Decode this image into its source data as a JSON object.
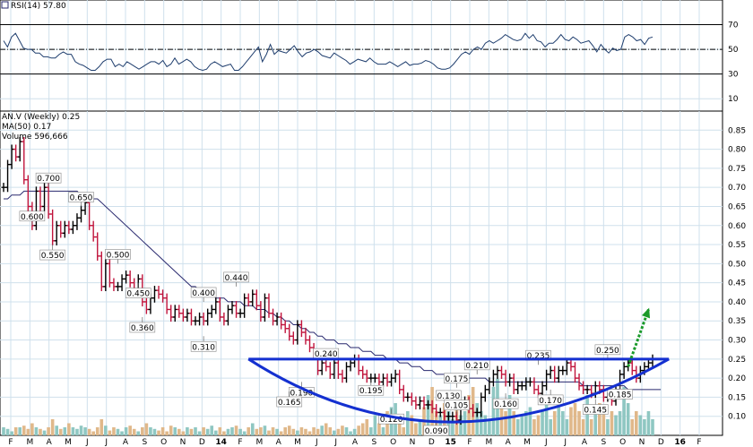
{
  "colors": {
    "panel_border": "#000000",
    "grid": "#cfe0ec",
    "up_bar": "#000000",
    "down_bar": "#c0143c",
    "ma_line": "#28286e",
    "rsi_line": "#1f3e6e",
    "rsi_oversold_fill": "#f0a040",
    "vol_up": "#8fc7c2",
    "vol_down": "#e0b88a",
    "cup_line": "#1430d0",
    "arrow": "#1a9a2a"
  },
  "chart_data": [
    {
      "type": "line",
      "panel": "rsi",
      "legend": "RSI(14) 57.80",
      "ylim": [
        0,
        90
      ],
      "y_ticks": [
        10,
        30,
        50,
        70
      ],
      "reference_lines": [
        30,
        50,
        70
      ],
      "grid": true,
      "values": [
        57,
        52,
        60,
        63,
        57,
        51,
        50,
        50,
        47,
        47,
        44,
        44,
        43,
        43,
        46,
        48,
        46,
        46,
        40,
        38,
        37,
        35,
        33,
        33,
        36,
        40,
        42,
        42,
        36,
        38,
        36,
        40,
        38,
        36,
        34,
        36,
        38,
        40,
        40,
        38,
        41,
        36,
        38,
        43,
        38,
        40,
        42,
        40,
        36,
        34,
        33,
        34,
        38,
        40,
        38,
        36,
        37,
        38,
        33,
        33,
        36,
        40,
        44,
        48,
        52,
        40,
        46,
        54,
        46,
        49,
        48,
        47,
        50,
        53,
        48,
        44,
        47,
        48,
        50,
        48,
        45,
        44,
        43,
        47,
        45,
        43,
        41,
        38,
        40,
        42,
        41,
        40,
        43,
        40,
        38,
        38,
        38,
        40,
        38,
        36,
        38,
        40,
        37,
        38,
        38,
        39,
        41,
        40,
        38,
        35,
        34,
        34,
        35,
        38,
        42,
        46,
        48,
        46,
        50,
        52,
        50,
        55,
        57,
        55,
        57,
        59,
        62,
        60,
        58,
        57,
        58,
        63,
        59,
        62,
        57,
        56,
        52,
        55,
        55,
        58,
        62,
        58,
        57,
        60,
        58,
        55,
        56,
        57,
        53,
        48,
        54,
        50,
        47,
        51,
        49,
        50,
        60,
        62,
        60,
        57,
        58,
        54,
        59,
        60
      ]
    },
    {
      "type": "bar",
      "panel": "price",
      "legend": [
        "AN.V (Weekly) 0.25",
        "MA(50) 0.17",
        "Volume 596,666"
      ],
      "ylim": [
        0.05,
        0.9
      ],
      "y_ticks": [
        0.1,
        0.15,
        0.2,
        0.25,
        0.3,
        0.35,
        0.4,
        0.45,
        0.5,
        0.55,
        0.6,
        0.65,
        0.7,
        0.75,
        0.8,
        0.85
      ],
      "grid": true,
      "x_ticks": [
        "F",
        "M",
        "A",
        "M",
        "J",
        "J",
        "A",
        "S",
        "O",
        "N",
        "D",
        "14",
        "F",
        "M",
        "A",
        "M",
        "J",
        "J",
        "A",
        "S",
        "O",
        "N",
        "D",
        "15",
        "F",
        "M",
        "A",
        "M",
        "J",
        "J",
        "A",
        "S",
        "O",
        "N",
        "D",
        "16",
        "F"
      ],
      "close": [
        0.7,
        0.76,
        0.8,
        0.78,
        0.82,
        0.72,
        0.65,
        0.6,
        0.69,
        0.65,
        0.7,
        0.63,
        0.56,
        0.6,
        0.58,
        0.6,
        0.59,
        0.6,
        0.62,
        0.64,
        0.66,
        0.6,
        0.57,
        0.52,
        0.44,
        0.5,
        0.45,
        0.44,
        0.44,
        0.46,
        0.47,
        0.45,
        0.43,
        0.46,
        0.4,
        0.38,
        0.41,
        0.43,
        0.42,
        0.41,
        0.38,
        0.36,
        0.38,
        0.37,
        0.36,
        0.37,
        0.35,
        0.35,
        0.36,
        0.35,
        0.37,
        0.38,
        0.4,
        0.36,
        0.35,
        0.38,
        0.39,
        0.37,
        0.37,
        0.41,
        0.4,
        0.42,
        0.39,
        0.36,
        0.41,
        0.37,
        0.35,
        0.36,
        0.34,
        0.33,
        0.31,
        0.3,
        0.34,
        0.32,
        0.3,
        0.28,
        0.26,
        0.22,
        0.24,
        0.23,
        0.21,
        0.24,
        0.21,
        0.2,
        0.23,
        0.24,
        0.25,
        0.22,
        0.21,
        0.2,
        0.2,
        0.2,
        0.19,
        0.2,
        0.19,
        0.2,
        0.21,
        0.17,
        0.15,
        0.15,
        0.14,
        0.13,
        0.14,
        0.13,
        0.13,
        0.12,
        0.11,
        0.11,
        0.1,
        0.1,
        0.1,
        0.09,
        0.13,
        0.14,
        0.12,
        0.11,
        0.11,
        0.15,
        0.17,
        0.19,
        0.21,
        0.22,
        0.21,
        0.19,
        0.2,
        0.17,
        0.18,
        0.18,
        0.19,
        0.19,
        0.17,
        0.16,
        0.18,
        0.21,
        0.22,
        0.2,
        0.22,
        0.22,
        0.24,
        0.23,
        0.2,
        0.18,
        0.17,
        0.17,
        0.16,
        0.18,
        0.17,
        0.15,
        0.15,
        0.14,
        0.17,
        0.21,
        0.23,
        0.24,
        0.22,
        0.2,
        0.22,
        0.23,
        0.24,
        0.25
      ],
      "ma50": [
        0.67,
        0.67,
        0.68,
        0.68,
        0.68,
        0.69,
        0.69,
        0.69,
        0.69,
        0.69,
        0.69,
        0.69,
        0.69,
        0.69,
        0.69,
        0.69,
        0.69,
        0.69,
        0.69,
        0.68,
        0.68,
        0.68,
        0.67,
        0.67,
        0.66,
        0.65,
        0.64,
        0.63,
        0.62,
        0.61,
        0.6,
        0.59,
        0.58,
        0.57,
        0.56,
        0.55,
        0.54,
        0.53,
        0.52,
        0.51,
        0.5,
        0.49,
        0.48,
        0.47,
        0.46,
        0.45,
        0.44,
        0.44,
        0.43,
        0.43,
        0.42,
        0.42,
        0.41,
        0.41,
        0.41,
        0.4,
        0.4,
        0.4,
        0.4,
        0.39,
        0.39,
        0.39,
        0.38,
        0.38,
        0.38,
        0.37,
        0.37,
        0.36,
        0.36,
        0.35,
        0.35,
        0.34,
        0.34,
        0.33,
        0.33,
        0.32,
        0.32,
        0.31,
        0.31,
        0.3,
        0.3,
        0.3,
        0.29,
        0.29,
        0.29,
        0.28,
        0.28,
        0.28,
        0.27,
        0.27,
        0.27,
        0.26,
        0.26,
        0.26,
        0.25,
        0.25,
        0.25,
        0.24,
        0.24,
        0.24,
        0.23,
        0.23,
        0.23,
        0.22,
        0.22,
        0.22,
        0.21,
        0.21,
        0.21,
        0.21,
        0.2,
        0.2,
        0.2,
        0.2,
        0.2,
        0.2,
        0.2,
        0.2,
        0.2,
        0.19,
        0.19,
        0.19,
        0.19,
        0.19,
        0.19,
        0.19,
        0.19,
        0.19,
        0.19,
        0.19,
        0.19,
        0.19,
        0.19,
        0.19,
        0.19,
        0.19,
        0.19,
        0.19,
        0.19,
        0.19,
        0.19,
        0.19,
        0.18,
        0.18,
        0.18,
        0.18,
        0.18,
        0.18,
        0.18,
        0.18,
        0.18,
        0.18,
        0.18,
        0.17,
        0.17,
        0.17,
        0.17,
        0.17,
        0.17,
        0.17,
        0.17,
        0.17
      ],
      "volume_relative": [
        0.1,
        0.08,
        0.05,
        0.1,
        0.1,
        0.12,
        0.08,
        0.15,
        0.1,
        0.08,
        0.06,
        0.1,
        0.2,
        0.12,
        0.08,
        0.1,
        0.15,
        0.1,
        0.08,
        0.12,
        0.1,
        0.08,
        0.05,
        0.1,
        0.2,
        0.12,
        0.06,
        0.1,
        0.08,
        0.05,
        0.1,
        0.12,
        0.08,
        0.05,
        0.1,
        0.15,
        0.1,
        0.08,
        0.06,
        0.1,
        0.05,
        0.12,
        0.1,
        0.08,
        0.05,
        0.1,
        0.08,
        0.1,
        0.05,
        0.1,
        0.08,
        0.12,
        0.06,
        0.1,
        0.05,
        0.08,
        0.1,
        0.12,
        0.08,
        0.05,
        0.1,
        0.15,
        0.08,
        0.1,
        0.12,
        0.06,
        0.1,
        0.08,
        0.05,
        0.1,
        0.12,
        0.08,
        0.06,
        0.1,
        0.08,
        0.05,
        0.1,
        0.08,
        0.12,
        0.15,
        0.1,
        0.06,
        0.08,
        0.12,
        0.1,
        0.05,
        0.08,
        0.12,
        0.15,
        0.2,
        0.1,
        0.25,
        0.15,
        0.1,
        0.3,
        0.35,
        0.4,
        0.2,
        0.1,
        0.3,
        0.25,
        0.15,
        0.2,
        0.35,
        0.5,
        0.6,
        0.3,
        0.25,
        0.4,
        0.3,
        0.2,
        0.4,
        0.25,
        0.3,
        0.5,
        0.6,
        0.4,
        0.3,
        0.25,
        0.2,
        0.6,
        0.7,
        0.4,
        0.3,
        0.5,
        0.3,
        0.2,
        0.25,
        0.3,
        0.35,
        0.2,
        0.25,
        0.3,
        0.4,
        0.2,
        0.3,
        0.5,
        0.3,
        0.2,
        0.35,
        0.4,
        0.3,
        0.2,
        0.5,
        0.2,
        0.3,
        0.4,
        0.35,
        0.2,
        0.3,
        0.25,
        0.3,
        0.6,
        0.4,
        0.2,
        0.3,
        0.25,
        0.2,
        0.3,
        0.2
      ],
      "annotations": [
        {
          "label": "0.700",
          "bar": 11
        },
        {
          "label": "0.600",
          "bar": 7
        },
        {
          "label": "0.650",
          "bar": 19
        },
        {
          "label": "0.550",
          "bar": 12
        },
        {
          "label": "0.500",
          "bar": 28
        },
        {
          "label": "0.450",
          "bar": 33
        },
        {
          "label": "0.360",
          "bar": 34
        },
        {
          "label": "0.400",
          "bar": 49
        },
        {
          "label": "0.440",
          "bar": 57
        },
        {
          "label": "0.310",
          "bar": 49
        },
        {
          "label": "0.240",
          "bar": 79
        },
        {
          "label": "0.190",
          "bar": 73
        },
        {
          "label": "0.165",
          "bar": 70
        },
        {
          "label": "0.195",
          "bar": 90
        },
        {
          "label": "0.120",
          "bar": 95
        },
        {
          "label": "0.130",
          "bar": 109
        },
        {
          "label": "0.090",
          "bar": 106
        },
        {
          "label": "0.175",
          "bar": 111
        },
        {
          "label": "0.105",
          "bar": 111
        },
        {
          "label": "0.210",
          "bar": 116
        },
        {
          "label": "0.160",
          "bar": 123
        },
        {
          "label": "0.235",
          "bar": 131
        },
        {
          "label": "0.170",
          "bar": 134
        },
        {
          "label": "0.145",
          "bar": 145
        },
        {
          "label": "0.250",
          "bar": 148
        },
        {
          "label": "0.185",
          "bar": 151
        }
      ],
      "overlay": {
        "cup_left": 0.25,
        "cup_right": 0.25,
        "cup_bottom": 0.085,
        "rim_level": 0.25,
        "arrow_from": 0.23,
        "arrow_to": 0.38
      }
    }
  ]
}
